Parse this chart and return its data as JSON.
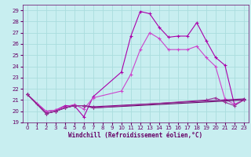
{
  "xlabel": "Windchill (Refroidissement éolien,°C)",
  "background_color": "#c8eef0",
  "grid_color": "#aadddd",
  "xlim": [
    -0.5,
    23.5
  ],
  "ylim": [
    19,
    29.5
  ],
  "xticks": [
    0,
    1,
    2,
    3,
    4,
    5,
    6,
    7,
    8,
    9,
    10,
    11,
    12,
    13,
    14,
    15,
    16,
    17,
    18,
    19,
    20,
    21,
    22,
    23
  ],
  "yticks": [
    19,
    20,
    21,
    22,
    23,
    24,
    25,
    26,
    27,
    28,
    29
  ],
  "line1_x": [
    0,
    1,
    2,
    3,
    4,
    5,
    6,
    7,
    10,
    11,
    12,
    13,
    14,
    15,
    16,
    17,
    18,
    19,
    20,
    21,
    22,
    23
  ],
  "line1_y": [
    21.5,
    20.7,
    20.0,
    20.1,
    20.5,
    20.5,
    19.5,
    21.3,
    23.5,
    26.7,
    28.9,
    28.7,
    27.5,
    26.6,
    26.7,
    26.7,
    27.9,
    26.3,
    24.8,
    24.1,
    20.6,
    21.0
  ],
  "line1_color": "#aa00aa",
  "line2_x": [
    0,
    2,
    3,
    4,
    5,
    6,
    7,
    10,
    11,
    12,
    13,
    14,
    15,
    16,
    17,
    18,
    19,
    20,
    21,
    22,
    23
  ],
  "line2_y": [
    21.5,
    20.0,
    20.1,
    20.4,
    20.6,
    20.2,
    21.2,
    21.8,
    23.3,
    25.5,
    27.0,
    26.5,
    25.5,
    25.5,
    25.5,
    25.8,
    24.8,
    24.0,
    21.1,
    20.6,
    21.0
  ],
  "line2_color": "#cc44cc",
  "line3_x": [
    0,
    2,
    3,
    4,
    5,
    6,
    7,
    23
  ],
  "line3_y": [
    21.5,
    19.8,
    20.0,
    20.3,
    20.5,
    20.5,
    20.4,
    21.1
  ],
  "line3_color": "#880088",
  "line4_x": [
    0,
    2,
    3,
    4,
    5,
    6,
    7,
    23
  ],
  "line4_y": [
    21.5,
    19.8,
    20.0,
    20.3,
    20.5,
    20.5,
    20.3,
    21.0
  ],
  "line4_color": "#660066",
  "line5_x": [
    0,
    2,
    3,
    4,
    5,
    6,
    7,
    19,
    20,
    21,
    22,
    23
  ],
  "line5_y": [
    21.5,
    19.8,
    20.0,
    20.3,
    20.5,
    20.5,
    20.3,
    21.0,
    21.2,
    20.8,
    20.5,
    21.0
  ],
  "line5_color": "#993399"
}
